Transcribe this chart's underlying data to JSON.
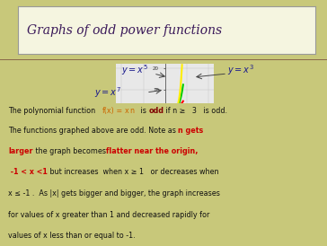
{
  "title": "Graphs of odd power functions",
  "slide_bg": "#c8c87a",
  "title_box_bg": "#f5f5e0",
  "title_color": "#3b1a5a",
  "title_fontsize": 10,
  "graph_xlim": [
    -4.5,
    4.5
  ],
  "graph_ylim": [
    -22,
    22
  ],
  "curves": [
    {
      "power": 3,
      "color": "#ff0000"
    },
    {
      "power": 5,
      "color": "#00cc00"
    },
    {
      "power": 7,
      "color": "#ffee00"
    }
  ],
  "label_color": "#1a1a8c",
  "body_fs": 5.8,
  "body_color": "#111111",
  "red_color": "#cc0000",
  "orange_color": "#cc6600",
  "bold_red": "#800000"
}
